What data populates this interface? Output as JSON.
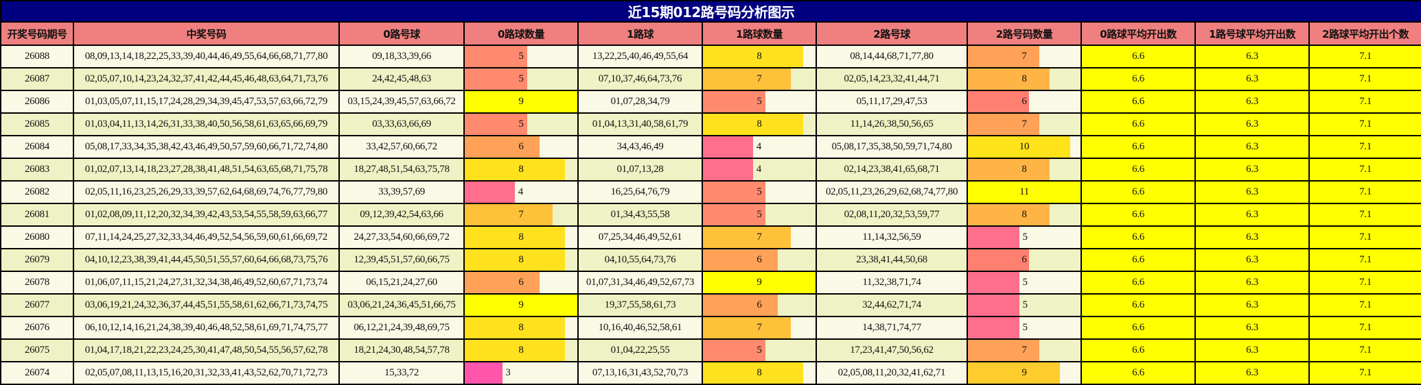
{
  "title": "近15期012路号码分析图示",
  "columns": [
    "开奖号码期号",
    "中奖号码",
    "0路号球",
    "0路球数量",
    "1路球",
    "1路球数量",
    "2路号球",
    "2路号码数量",
    "0路球平均开出数",
    "1路号球平均开出数",
    "2路球平均开出个数"
  ],
  "bar_max": {
    "c0": 9,
    "c1": 9,
    "c2": 11
  },
  "averages": {
    "avg0": "6.6",
    "avg1": "6.3",
    "avg2": "7.1"
  },
  "rows": [
    {
      "issue": "26088",
      "numbers": "08,09,13,14,18,22,25,33,39,40,44,46,49,55,64,66,68,71,77,80",
      "r0": "09,18,33,39,66",
      "c0": 5,
      "r1": "13,22,25,40,46,49,55,64",
      "c1": 8,
      "r2": "08,14,44,68,71,77,80",
      "c2": 7,
      "col0": "#FF8A6E",
      "col1": "#FFE11E",
      "col2": "#FFA257",
      "avg0": "6.6",
      "avg1": "6.3",
      "avg2": "7.1"
    },
    {
      "issue": "26087",
      "numbers": "02,05,07,10,14,23,24,32,37,41,42,44,45,46,48,63,64,71,73,76",
      "r0": "24,42,45,48,63",
      "c0": 5,
      "r1": "07,10,37,46,64,73,76",
      "c1": 7,
      "r2": "02,05,14,23,32,41,44,71",
      "c2": 8,
      "col0": "#FF8A6E",
      "col1": "#FFC13A",
      "col2": "#FFB545",
      "avg0": "6.6",
      "avg1": "6.3",
      "avg2": "7.1"
    },
    {
      "issue": "26086",
      "numbers": "01,03,05,07,11,15,17,24,28,29,34,39,45,47,53,57,63,66,72,79",
      "r0": "03,15,24,39,45,57,63,66,72",
      "c0": 9,
      "r1": "01,07,28,34,79",
      "c1": 5,
      "r2": "05,11,17,29,47,53",
      "c2": 6,
      "col0": "#FFFF00",
      "col1": "#FF8A6E",
      "col2": "#FF8070",
      "avg0": "6.6",
      "avg1": "6.3",
      "avg2": "7.1"
    },
    {
      "issue": "26085",
      "numbers": "01,03,04,11,13,14,26,31,33,38,40,50,56,58,61,63,65,66,69,79",
      "r0": "03,33,63,66,69",
      "c0": 5,
      "r1": "01,04,13,31,40,58,61,79",
      "c1": 8,
      "r2": "11,14,26,38,50,56,65",
      "c2": 7,
      "col0": "#FF8A6E",
      "col1": "#FFE11E",
      "col2": "#FFA257",
      "avg0": "6.6",
      "avg1": "6.3",
      "avg2": "7.1"
    },
    {
      "issue": "26084",
      "numbers": "05,08,17,33,34,35,38,42,43,46,49,50,57,59,60,66,71,72,74,80",
      "r0": "33,42,57,60,66,72",
      "c0": 6,
      "r1": "34,43,46,49",
      "c1": 4,
      "r2": "05,08,17,35,38,50,59,71,74,80",
      "c2": 10,
      "col0": "#FFA257",
      "col1": "#FF6E8C",
      "col2": "#FFE31A",
      "avg0": "6.6",
      "avg1": "6.3",
      "avg2": "7.1"
    },
    {
      "issue": "26083",
      "numbers": "01,02,07,13,14,18,23,27,28,38,41,48,51,54,63,65,68,71,75,78",
      "r0": "18,27,48,51,54,63,75,78",
      "c0": 8,
      "r1": "01,07,13,28",
      "c1": 4,
      "r2": "02,14,23,38,41,65,68,71",
      "c2": 8,
      "col0": "#FFE11E",
      "col1": "#FF6E8C",
      "col2": "#FFB545",
      "avg0": "6.6",
      "avg1": "6.3",
      "avg2": "7.1"
    },
    {
      "issue": "26082",
      "numbers": "02,05,11,16,23,25,26,29,33,39,57,62,64,68,69,74,76,77,79,80",
      "r0": "33,39,57,69",
      "c0": 4,
      "r1": "16,25,64,76,79",
      "c1": 5,
      "r2": "02,05,11,23,26,29,62,68,74,77,80",
      "c2": 11,
      "col0": "#FF6E8C",
      "col1": "#FF8A6E",
      "col2": "#FFFF00",
      "avg0": "6.6",
      "avg1": "6.3",
      "avg2": "7.1"
    },
    {
      "issue": "26081",
      "numbers": "01,02,08,09,11,12,20,32,34,39,42,43,53,54,55,58,59,63,66,77",
      "r0": "09,12,39,42,54,63,66",
      "c0": 7,
      "r1": "01,34,43,55,58",
      "c1": 5,
      "r2": "02,08,11,20,32,53,59,77",
      "c2": 8,
      "col0": "#FFC13A",
      "col1": "#FF8A6E",
      "col2": "#FFB545",
      "avg0": "6.6",
      "avg1": "6.3",
      "avg2": "7.1"
    },
    {
      "issue": "26080",
      "numbers": "07,11,14,24,25,27,32,33,34,46,49,52,54,56,59,60,61,66,69,72",
      "r0": "24,27,33,54,60,66,69,72",
      "c0": 8,
      "r1": "07,25,34,46,49,52,61",
      "c1": 7,
      "r2": "11,14,32,56,59",
      "c2": 5,
      "col0": "#FFE11E",
      "col1": "#FFC13A",
      "col2": "#FF6E8C",
      "avg0": "6.6",
      "avg1": "6.3",
      "avg2": "7.1"
    },
    {
      "issue": "26079",
      "numbers": "04,10,12,23,38,39,41,44,45,50,51,55,57,60,64,66,68,73,75,76",
      "r0": "12,39,45,51,57,60,66,75",
      "c0": 8,
      "r1": "04,10,55,64,73,76",
      "c1": 6,
      "r2": "23,38,41,44,50,68",
      "c2": 6,
      "col0": "#FFE11E",
      "col1": "#FFA257",
      "col2": "#FF8070",
      "avg0": "6.6",
      "avg1": "6.3",
      "avg2": "7.1"
    },
    {
      "issue": "26078",
      "numbers": "01,06,07,11,15,21,24,27,31,32,34,38,46,49,52,60,67,71,73,74",
      "r0": "06,15,21,24,27,60",
      "c0": 6,
      "r1": "01,07,31,34,46,49,52,67,73",
      "c1": 9,
      "r2": "11,32,38,71,74",
      "c2": 5,
      "col0": "#FFA257",
      "col1": "#FFFF00",
      "col2": "#FF6E8C",
      "avg0": "6.6",
      "avg1": "6.3",
      "avg2": "7.1"
    },
    {
      "issue": "26077",
      "numbers": "03,06,19,21,24,32,36,37,44,45,51,55,58,61,62,66,71,73,74,75",
      "r0": "03,06,21,24,36,45,51,66,75",
      "c0": 9,
      "r1": "19,37,55,58,61,73",
      "c1": 6,
      "r2": "32,44,62,71,74",
      "c2": 5,
      "col0": "#FFFF00",
      "col1": "#FFA257",
      "col2": "#FF6E8C",
      "avg0": "6.6",
      "avg1": "6.3",
      "avg2": "7.1"
    },
    {
      "issue": "26076",
      "numbers": "06,10,12,14,16,21,24,38,39,40,46,48,52,58,61,69,71,74,75,77",
      "r0": "06,12,21,24,39,48,69,75",
      "c0": 8,
      "r1": "10,16,40,46,52,58,61",
      "c1": 7,
      "r2": "14,38,71,74,77",
      "c2": 5,
      "col0": "#FFE11E",
      "col1": "#FFC13A",
      "col2": "#FF6E8C",
      "avg0": "6.6",
      "avg1": "6.3",
      "avg2": "7.1"
    },
    {
      "issue": "26075",
      "numbers": "01,04,17,18,21,22,23,24,25,30,41,47,48,50,54,55,56,57,62,78",
      "r0": "18,21,24,30,48,54,57,78",
      "c0": 8,
      "r1": "01,04,22,25,55",
      "c1": 5,
      "r2": "17,23,41,47,50,56,62",
      "c2": 7,
      "col0": "#FFE11E",
      "col1": "#FF8A6E",
      "col2": "#FFA257",
      "avg0": "6.6",
      "avg1": "6.3",
      "avg2": "7.1"
    },
    {
      "issue": "26074",
      "numbers": "02,05,07,08,11,13,15,16,20,31,32,33,41,43,52,62,70,71,72,73",
      "r0": "15,33,72",
      "c0": 3,
      "r1": "07,13,16,31,43,52,70,73",
      "c1": 8,
      "r2": "02,05,08,11,20,32,41,62,71",
      "c2": 9,
      "col0": "#FF55AA",
      "col1": "#FFE11E",
      "col2": "#FFCC2E",
      "avg0": "6.6",
      "avg1": "6.3",
      "avg2": "7.1"
    }
  ]
}
